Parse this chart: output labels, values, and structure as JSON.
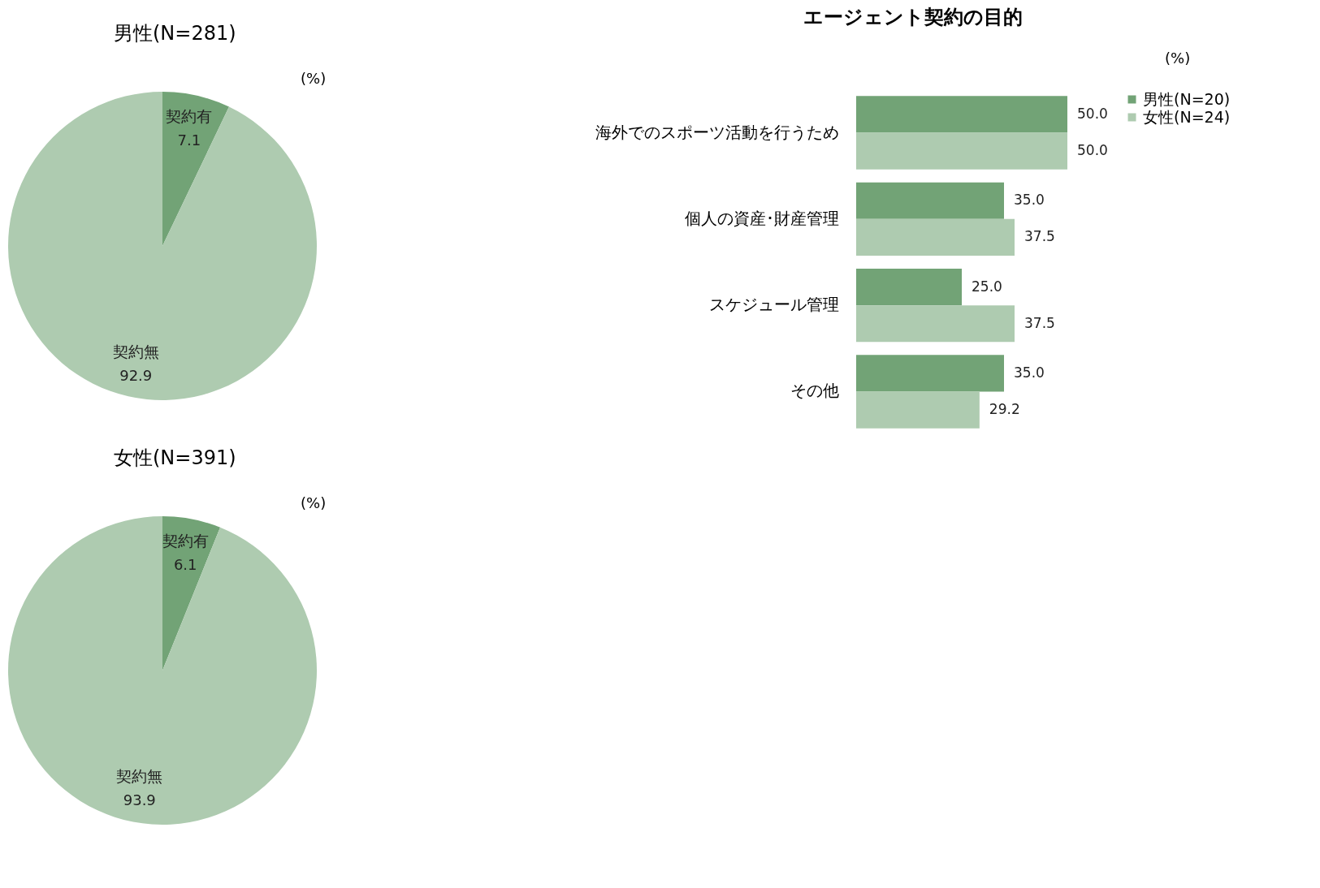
{
  "chart_data": [
    {
      "type": "pie",
      "title": "男性(N=281)",
      "categories": [
        "契約有",
        "契約無"
      ],
      "values": [
        7.1,
        92.9
      ],
      "colors": [
        "#72a376",
        "#aecbb0"
      ],
      "data_labels": true,
      "annotations": [
        "(%)"
      ]
    },
    {
      "type": "pie",
      "title": "女性(N=391)",
      "categories": [
        "契約有",
        "契約無"
      ],
      "values": [
        6.1,
        93.9
      ],
      "colors": [
        "#72a376",
        "#aecbb0"
      ],
      "data_labels": true,
      "annotations": [
        "(%)"
      ]
    },
    {
      "type": "bar",
      "orientation": "horizontal",
      "title": "エージェント契約の目的",
      "categories": [
        "海外でのスポーツ活動を行うため",
        "個人の資産･財産管理",
        "スケジュール管理",
        "その他"
      ],
      "series": [
        {
          "name": "男性(N=20)",
          "color": "#72a376",
          "values": [
            50.0,
            35.0,
            25.0,
            35.0
          ],
          "value_labels": [
            "50.0",
            "35.0",
            "25.0",
            "35.0"
          ]
        },
        {
          "name": "女性(N=24)",
          "color": "#aecbb0",
          "values": [
            50.0,
            37.5,
            37.5,
            29.2
          ],
          "value_labels": [
            "50.0",
            "37.5",
            "37.5",
            "29.2"
          ]
        }
      ],
      "legend": "right",
      "annotations": [
        "(%)"
      ]
    }
  ]
}
